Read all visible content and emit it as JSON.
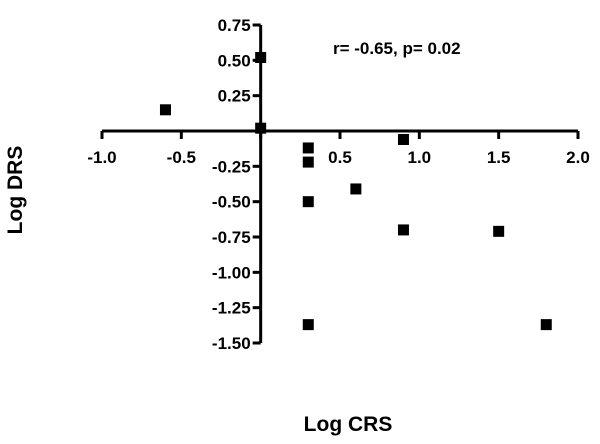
{
  "chart_data": {
    "type": "scatter",
    "title": "",
    "xlabel": "Log CRS",
    "ylabel": "Log DRS",
    "annotation": "r= -0.65, p= 0.02",
    "xlim": [
      -1.0,
      2.0
    ],
    "ylim": [
      -1.5,
      0.75
    ],
    "grid": false,
    "x_ticks": [
      "-1.0",
      "-0.5",
      "0.5",
      "1.0",
      "1.5",
      "2.0"
    ],
    "y_ticks": [
      "0.75",
      "0.50",
      "0.25",
      "-0.25",
      "-0.50",
      "-0.75",
      "-1.00",
      "-1.25",
      "-1.50"
    ],
    "marker": "square",
    "marker_color": "#000000",
    "series": [
      {
        "points": [
          {
            "x": -0.6,
            "y": 0.15
          },
          {
            "x": 0.0,
            "y": 0.52
          },
          {
            "x": 0.0,
            "y": 0.02
          },
          {
            "x": 0.3,
            "y": -0.12
          },
          {
            "x": 0.3,
            "y": -0.22
          },
          {
            "x": 0.3,
            "y": -0.5
          },
          {
            "x": 0.3,
            "y": -1.37
          },
          {
            "x": 0.6,
            "y": -0.41
          },
          {
            "x": 0.9,
            "y": -0.06
          },
          {
            "x": 0.9,
            "y": -0.7
          },
          {
            "x": 1.5,
            "y": -0.71
          },
          {
            "x": 1.8,
            "y": -1.37
          }
        ]
      }
    ]
  }
}
